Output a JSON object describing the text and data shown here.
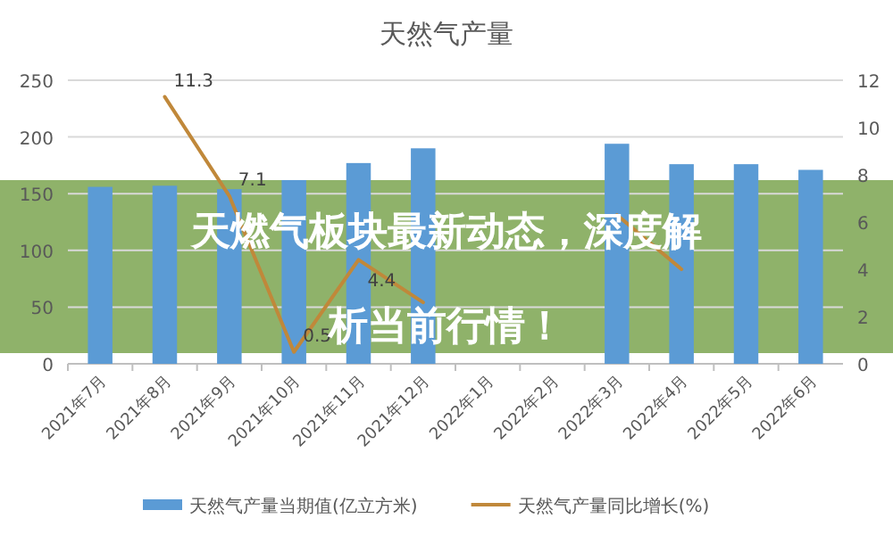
{
  "chart_data": {
    "type": "bar",
    "title": "天然气产量",
    "categories": [
      "2021年7月",
      "2021年8月",
      "2021年9月",
      "2021年10月",
      "2021年11月",
      "2021年12月",
      "2022年1月",
      "2022年2月",
      "2022年3月",
      "2022年4月",
      "2022年5月",
      "2022年6月"
    ],
    "series": [
      {
        "name": "天然气产量当期值(亿立方米)",
        "color": "#5b9bd5",
        "values": [
          156,
          157,
          154,
          162,
          177,
          190,
          null,
          null,
          194,
          176,
          176,
          171
        ]
      },
      {
        "name": "天然气产量同比增长(%)",
        "type": "line",
        "axis": "y2",
        "color": "#c0883a",
        "values": [
          null,
          11.3,
          7.1,
          0.5,
          4.4,
          2.6,
          null,
          null,
          6.3,
          4.0,
          null,
          null
        ],
        "value_labels": [
          null,
          "11.3",
          "7.1",
          "0.5",
          "4.4",
          null,
          null,
          null,
          null,
          null,
          null,
          null
        ]
      }
    ],
    "ylim": [
      0,
      250
    ],
    "yticks": [
      0,
      50,
      100,
      150,
      200,
      250
    ],
    "y2lim": [
      0,
      12
    ],
    "y2ticks": [
      0,
      2,
      4,
      6,
      8,
      10,
      12
    ],
    "grid": "y",
    "legend": "bottom",
    "annotations": [
      "天燃气板块最新动态，深度解析当前行情！"
    ]
  }
}
